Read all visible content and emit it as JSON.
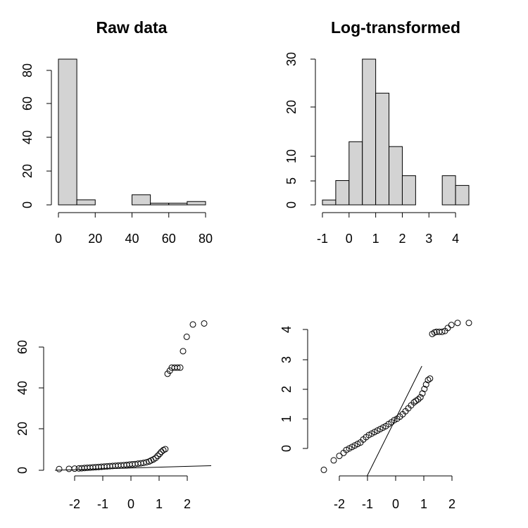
{
  "chart_data": [
    {
      "type": "bar",
      "title": "Raw data",
      "xlabel": "",
      "ylabel": "",
      "bin_edges": [
        0,
        10,
        20,
        30,
        40,
        50,
        60,
        70,
        80
      ],
      "counts": [
        87,
        3,
        0,
        0,
        6,
        1,
        1,
        2
      ],
      "xlim": [
        0,
        80
      ],
      "ylim": [
        0,
        87
      ],
      "x_ticks": [
        "0",
        "20",
        "40",
        "60",
        "80"
      ],
      "y_ticks": [
        "0",
        "20",
        "40",
        "60",
        "80"
      ]
    },
    {
      "type": "bar",
      "title": "Log-transformed",
      "xlabel": "",
      "ylabel": "",
      "bin_edges": [
        -1,
        -0.5,
        0,
        0.5,
        1,
        1.5,
        2,
        2.5,
        3,
        3.5,
        4,
        4.5
      ],
      "counts": [
        1,
        5,
        13,
        30,
        23,
        12,
        6,
        0,
        0,
        6,
        4
      ],
      "xlim": [
        -1,
        4.5
      ],
      "ylim": [
        0,
        30
      ],
      "x_ticks": [
        "-1",
        "0",
        "1",
        "2",
        "3",
        "4"
      ],
      "y_ticks": [
        "0",
        "5",
        "10",
        "20",
        "30"
      ]
    },
    {
      "type": "scatter",
      "title": "",
      "xlabel": "",
      "ylabel": "",
      "x_ticks": [
        "-2",
        "-1",
        "0",
        "1",
        "2"
      ],
      "y_ticks": [
        "0",
        "20",
        "40",
        "60"
      ],
      "xlim": [
        -2.5,
        2.5
      ],
      "ylim": [
        0,
        70
      ],
      "points": [
        [
          -2.55,
          0.6
        ],
        [
          -2.2,
          0.7
        ],
        [
          -2.0,
          0.8
        ],
        [
          -1.85,
          0.9
        ],
        [
          -1.75,
          1.0
        ],
        [
          -1.65,
          1.1
        ],
        [
          -1.55,
          1.2
        ],
        [
          -1.45,
          1.3
        ],
        [
          -1.35,
          1.4
        ],
        [
          -1.25,
          1.5
        ],
        [
          -1.15,
          1.6
        ],
        [
          -1.05,
          1.7
        ],
        [
          -0.95,
          1.8
        ],
        [
          -0.85,
          1.9
        ],
        [
          -0.75,
          2.0
        ],
        [
          -0.65,
          2.1
        ],
        [
          -0.55,
          2.2
        ],
        [
          -0.45,
          2.3
        ],
        [
          -0.35,
          2.4
        ],
        [
          -0.25,
          2.5
        ],
        [
          -0.15,
          2.6
        ],
        [
          -0.05,
          2.8
        ],
        [
          0.05,
          2.9
        ],
        [
          0.15,
          3.0
        ],
        [
          0.25,
          3.2
        ],
        [
          0.35,
          3.4
        ],
        [
          0.45,
          3.6
        ],
        [
          0.55,
          3.9
        ],
        [
          0.65,
          4.3
        ],
        [
          0.72,
          4.8
        ],
        [
          0.8,
          5.3
        ],
        [
          0.88,
          6.0
        ],
        [
          0.95,
          7.0
        ],
        [
          1.02,
          8.0
        ],
        [
          1.08,
          9.0
        ],
        [
          1.15,
          9.8
        ],
        [
          1.22,
          10.3
        ],
        [
          1.3,
          47
        ],
        [
          1.38,
          48.5
        ],
        [
          1.45,
          50
        ],
        [
          1.55,
          50
        ],
        [
          1.65,
          50
        ],
        [
          1.75,
          50
        ],
        [
          1.85,
          58
        ],
        [
          1.98,
          65
        ],
        [
          2.2,
          71
        ],
        [
          2.6,
          71.5
        ]
      ],
      "reference_line": {
        "intercept": 1.1,
        "slope": 0.4
      }
    },
    {
      "type": "scatter",
      "title": "",
      "xlabel": "",
      "ylabel": "",
      "x_ticks": [
        "-2",
        "-1",
        "0",
        "1",
        "2"
      ],
      "y_ticks": [
        "0",
        "1",
        "2",
        "3",
        "4"
      ],
      "xlim": [
        -2.5,
        2.5
      ],
      "ylim": [
        -0.7,
        4.3
      ],
      "points": [
        [
          -2.55,
          -0.72
        ],
        [
          -2.2,
          -0.4
        ],
        [
          -2.0,
          -0.25
        ],
        [
          -1.85,
          -0.15
        ],
        [
          -1.75,
          -0.05
        ],
        [
          -1.65,
          0.0
        ],
        [
          -1.55,
          0.05
        ],
        [
          -1.45,
          0.1
        ],
        [
          -1.35,
          0.15
        ],
        [
          -1.25,
          0.2
        ],
        [
          -1.15,
          0.3
        ],
        [
          -1.05,
          0.38
        ],
        [
          -0.95,
          0.45
        ],
        [
          -0.85,
          0.5
        ],
        [
          -0.75,
          0.55
        ],
        [
          -0.65,
          0.6
        ],
        [
          -0.55,
          0.65
        ],
        [
          -0.45,
          0.7
        ],
        [
          -0.35,
          0.75
        ],
        [
          -0.25,
          0.82
        ],
        [
          -0.15,
          0.88
        ],
        [
          -0.05,
          0.95
        ],
        [
          0.05,
          1.0
        ],
        [
          0.15,
          1.07
        ],
        [
          0.25,
          1.15
        ],
        [
          0.35,
          1.25
        ],
        [
          0.45,
          1.35
        ],
        [
          0.55,
          1.45
        ],
        [
          0.65,
          1.55
        ],
        [
          0.72,
          1.6
        ],
        [
          0.8,
          1.65
        ],
        [
          0.88,
          1.72
        ],
        [
          0.95,
          1.85
        ],
        [
          1.02,
          2.0
        ],
        [
          1.08,
          2.15
        ],
        [
          1.15,
          2.3
        ],
        [
          1.22,
          2.35
        ],
        [
          1.3,
          3.85
        ],
        [
          1.38,
          3.9
        ],
        [
          1.45,
          3.92
        ],
        [
          1.55,
          3.92
        ],
        [
          1.65,
          3.92
        ],
        [
          1.75,
          3.95
        ],
        [
          1.85,
          4.05
        ],
        [
          1.98,
          4.15
        ],
        [
          2.2,
          4.22
        ],
        [
          2.6,
          4.22
        ]
      ],
      "reference_line": {
        "intercept": 1.0,
        "slope": 1.9
      }
    }
  ]
}
